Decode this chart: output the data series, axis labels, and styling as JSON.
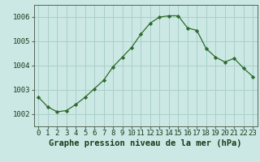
{
  "x": [
    0,
    1,
    2,
    3,
    4,
    5,
    6,
    7,
    8,
    9,
    10,
    11,
    12,
    13,
    14,
    15,
    16,
    17,
    18,
    19,
    20,
    21,
    22,
    23
  ],
  "y": [
    1002.7,
    1002.3,
    1002.1,
    1002.15,
    1002.4,
    1002.7,
    1003.05,
    1003.4,
    1003.95,
    1004.35,
    1004.75,
    1005.3,
    1005.75,
    1006.0,
    1006.05,
    1006.05,
    1005.55,
    1005.45,
    1004.7,
    1004.35,
    1004.15,
    1004.3,
    1003.9,
    1003.55
  ],
  "line_color": "#2d6a2d",
  "marker": "D",
  "marker_size": 2.2,
  "bg_color": "#cce8e4",
  "grid_color": "#a8cfc9",
  "title": "Graphe pression niveau de la mer (hPa)",
  "ylim": [
    1001.5,
    1006.5
  ],
  "yticks": [
    1002,
    1003,
    1004,
    1005,
    1006
  ],
  "xtick_labels": [
    "0",
    "1",
    "2",
    "3",
    "4",
    "5",
    "6",
    "7",
    "8",
    "9",
    "10",
    "11",
    "12",
    "13",
    "14",
    "15",
    "16",
    "17",
    "18",
    "19",
    "20",
    "21",
    "22",
    "23"
  ],
  "title_fontsize": 7.5,
  "tick_fontsize": 6.5,
  "text_color": "#1a3a1a",
  "axes_color": "#556655"
}
